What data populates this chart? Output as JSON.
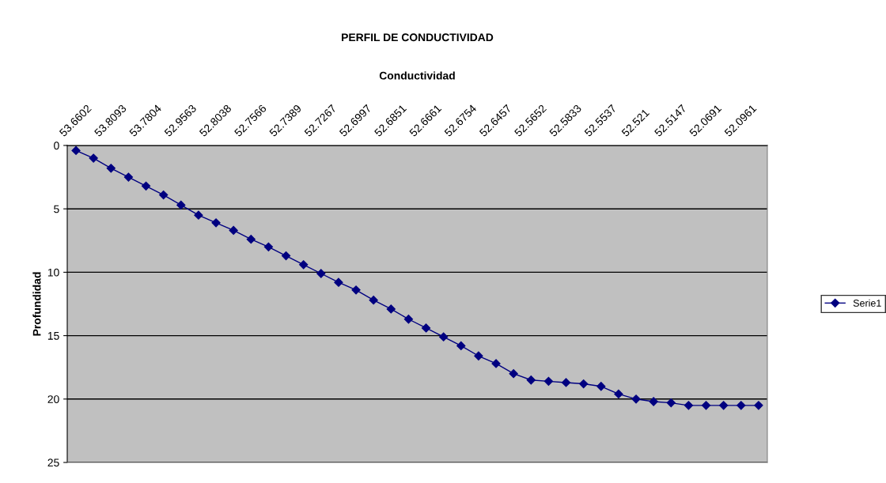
{
  "chart_data": {
    "type": "line",
    "title": "PERFIL DE CONDUCTIVIDAD",
    "xlabel": "Conductividad",
    "ylabel": "Profundidad",
    "categories": [
      "53.6602",
      null,
      "53.8093",
      null,
      "53.7804",
      null,
      "52.9563",
      null,
      "52.8038",
      null,
      "52.7566",
      null,
      "52.7389",
      null,
      "52.7267",
      null,
      "52.6997",
      null,
      "52.6851",
      null,
      "52.6661",
      null,
      "52.6754",
      null,
      "52.6457",
      null,
      "52.5652",
      null,
      "52.5833",
      null,
      "52.5537",
      null,
      "52.521",
      null,
      "52.5147",
      null,
      "52.0691",
      null,
      "52.0961",
      null
    ],
    "series": [
      {
        "name": "Serie1",
        "color": "#000080",
        "values": [
          0.4,
          1.0,
          1.8,
          2.5,
          3.2,
          3.9,
          4.7,
          5.5,
          6.1,
          6.7,
          7.4,
          8.0,
          8.7,
          9.4,
          10.1,
          10.8,
          11.4,
          12.2,
          12.9,
          13.7,
          14.4,
          15.1,
          15.8,
          16.6,
          17.2,
          18.0,
          18.5,
          18.6,
          18.7,
          18.8,
          19.0,
          19.6,
          20.0,
          20.2,
          20.3,
          20.5,
          20.5,
          20.5,
          20.5,
          20.5
        ]
      }
    ],
    "ylim": [
      25,
      0
    ],
    "yticks": [
      0,
      5,
      10,
      15,
      20,
      25
    ],
    "grid": "y",
    "legend": "right",
    "marker": "diamond",
    "line_style": "solid"
  }
}
